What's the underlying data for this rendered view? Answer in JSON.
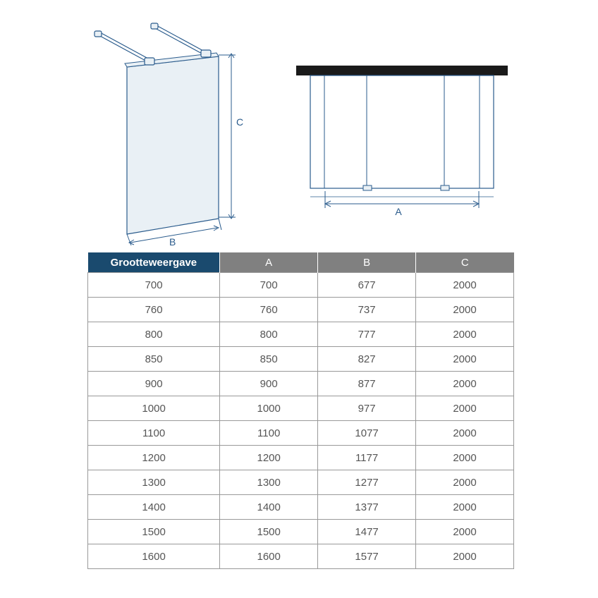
{
  "diagrams": {
    "left": {
      "label_B": "B",
      "label_C": "C",
      "stroke": "#2a5b8c",
      "panel_fill": "#e9f0f5",
      "panel_stroke": "#2a5b8c"
    },
    "right": {
      "label_A": "A",
      "stroke": "#2a5b8c",
      "topbar_fill": "#1a1a1a"
    }
  },
  "table": {
    "header_first_bg": "#1a4a6e",
    "header_rest_bg": "#808080",
    "header_text_color": "#ffffff",
    "border_color": "#999999",
    "cell_text_color": "#555555",
    "font_size": 15,
    "columns": [
      "Grootteweergave",
      "A",
      "B",
      "C"
    ],
    "rows": [
      [
        "700",
        "700",
        "677",
        "2000"
      ],
      [
        "760",
        "760",
        "737",
        "2000"
      ],
      [
        "800",
        "800",
        "777",
        "2000"
      ],
      [
        "850",
        "850",
        "827",
        "2000"
      ],
      [
        "900",
        "900",
        "877",
        "2000"
      ],
      [
        "1000",
        "1000",
        "977",
        "2000"
      ],
      [
        "1100",
        "1100",
        "1077",
        "2000"
      ],
      [
        "1200",
        "1200",
        "1177",
        "2000"
      ],
      [
        "1300",
        "1300",
        "1277",
        "2000"
      ],
      [
        "1400",
        "1400",
        "1377",
        "2000"
      ],
      [
        "1500",
        "1500",
        "1477",
        "2000"
      ],
      [
        "1600",
        "1600",
        "1577",
        "2000"
      ]
    ]
  }
}
